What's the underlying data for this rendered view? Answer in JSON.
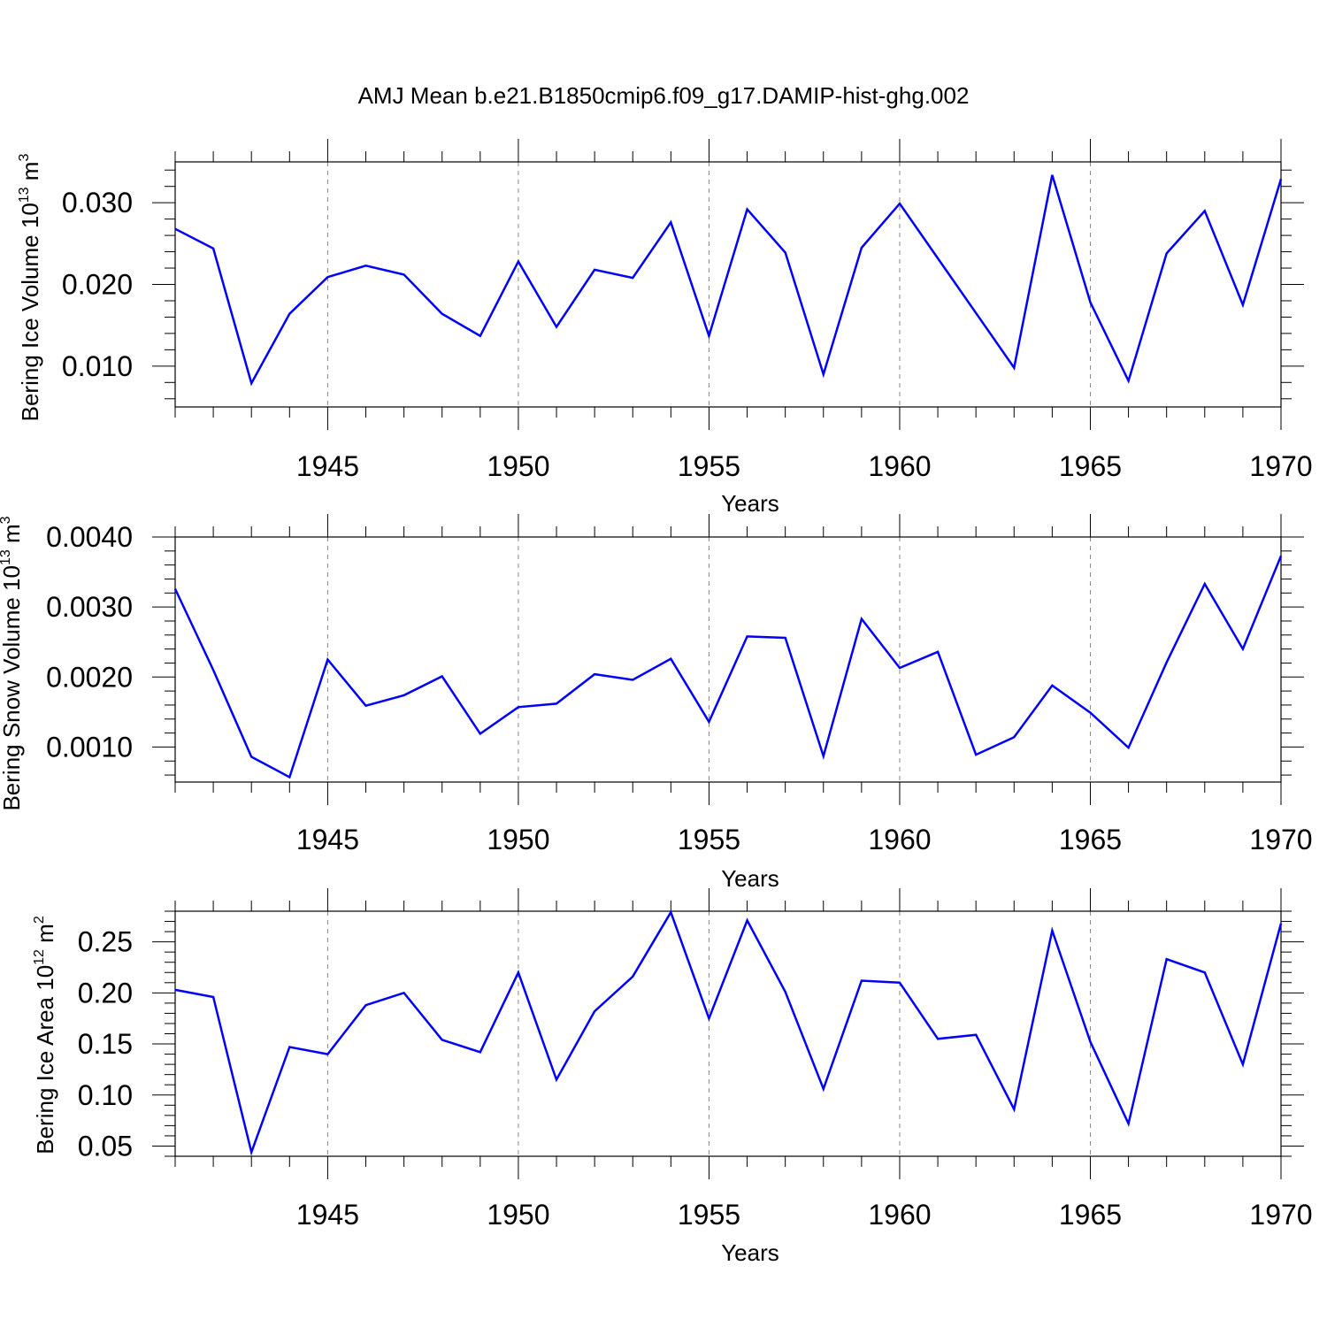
{
  "figure": {
    "title": "AMJ Mean b.e21.B1850cmip6.f09_g17.DAMIP-hist-ghg.002"
  },
  "style": {
    "line_color": "#0000ff",
    "axis_color": "#000000",
    "grid_color": "#888888"
  },
  "chart_data": [
    {
      "type": "line",
      "name": "ice-volume",
      "ylabel_main": "Bering Ice Volume 10",
      "ylabel_exp": "13",
      "ylabel_unit": " m",
      "ylabel_unit_exp": "3",
      "xlabel": "Years",
      "xlim": [
        1941,
        1970
      ],
      "ylim": [
        0.005,
        0.035
      ],
      "yticks": [
        0.01,
        0.02,
        0.03
      ],
      "ytick_labels": [
        "0.010",
        "0.020",
        "0.030"
      ],
      "y_minor_step": 0.002,
      "xticks": [
        1945,
        1950,
        1955,
        1960,
        1965,
        1970
      ],
      "xtick_labels": [
        "1945",
        "1950",
        "1955",
        "1960",
        "1965",
        "1970"
      ],
      "grid_x": [
        1945,
        1950,
        1955,
        1960,
        1965
      ],
      "x": [
        1941,
        1942,
        1943,
        1944,
        1945,
        1946,
        1947,
        1948,
        1949,
        1950,
        1951,
        1952,
        1953,
        1954,
        1955,
        1956,
        1957,
        1958,
        1959,
        1960,
        1961,
        1962,
        1963,
        1964,
        1965,
        1966,
        1967,
        1968,
        1969,
        1970
      ],
      "values": [
        0.0268,
        0.0244,
        0.0079,
        0.0164,
        0.0209,
        0.0223,
        0.0212,
        0.0164,
        0.0137,
        0.0228,
        0.0148,
        0.0218,
        0.0208,
        0.0276,
        0.0137,
        0.0292,
        0.0239,
        0.009,
        0.0245,
        0.0299,
        0.0232,
        0.0165,
        0.0098,
        0.0334,
        0.0178,
        0.0082,
        0.0238,
        0.029,
        0.0175,
        0.0329
      ]
    },
    {
      "type": "line",
      "name": "snow-volume",
      "ylabel_main": "Bering Snow Volume 10",
      "ylabel_exp": "13",
      "ylabel_unit": " m",
      "ylabel_unit_exp": "3",
      "xlabel": "Years",
      "xlim": [
        1941,
        1970
      ],
      "ylim": [
        0.0005,
        0.004
      ],
      "yticks": [
        0.001,
        0.002,
        0.003,
        0.004
      ],
      "ytick_labels": [
        "0.0010",
        "0.0020",
        "0.0030",
        "0.0040"
      ],
      "y_minor_step": 0.0002,
      "xticks": [
        1945,
        1950,
        1955,
        1960,
        1965,
        1970
      ],
      "xtick_labels": [
        "1945",
        "1950",
        "1955",
        "1960",
        "1965",
        "1970"
      ],
      "grid_x": [
        1945,
        1950,
        1955,
        1960,
        1965
      ],
      "x": [
        1941,
        1942,
        1943,
        1944,
        1945,
        1946,
        1947,
        1948,
        1949,
        1950,
        1951,
        1952,
        1953,
        1954,
        1955,
        1956,
        1957,
        1958,
        1959,
        1960,
        1961,
        1962,
        1963,
        1964,
        1965,
        1966,
        1967,
        1968,
        1969,
        1970
      ],
      "values": [
        0.00326,
        0.0021,
        0.00086,
        0.00057,
        0.00225,
        0.00159,
        0.00174,
        0.00201,
        0.00119,
        0.00157,
        0.00162,
        0.00204,
        0.00196,
        0.00226,
        0.00136,
        0.00258,
        0.00256,
        0.00087,
        0.00283,
        0.00213,
        0.00236,
        0.00089,
        0.00114,
        0.00188,
        0.00149,
        0.00099,
        0.00221,
        0.00333,
        0.0024,
        0.00373
      ]
    },
    {
      "type": "line",
      "name": "ice-area",
      "ylabel_main": "Bering Ice Area 10",
      "ylabel_exp": "12",
      "ylabel_unit": " m",
      "ylabel_unit_exp": "2",
      "xlabel": "Years",
      "xlim": [
        1941,
        1970
      ],
      "ylim": [
        0.04,
        0.28
      ],
      "yticks": [
        0.05,
        0.1,
        0.15,
        0.2,
        0.25
      ],
      "ytick_labels": [
        "0.05",
        "0.10",
        "0.15",
        "0.20",
        "0.25"
      ],
      "y_minor_step": 0.01,
      "xticks": [
        1945,
        1950,
        1955,
        1960,
        1965,
        1970
      ],
      "xtick_labels": [
        "1945",
        "1950",
        "1955",
        "1960",
        "1965",
        "1970"
      ],
      "grid_x": [
        1945,
        1950,
        1955,
        1960,
        1965
      ],
      "x": [
        1941,
        1942,
        1943,
        1944,
        1945,
        1946,
        1947,
        1948,
        1949,
        1950,
        1951,
        1952,
        1953,
        1954,
        1955,
        1956,
        1957,
        1958,
        1959,
        1960,
        1961,
        1962,
        1963,
        1964,
        1965,
        1966,
        1967,
        1968,
        1969,
        1970
      ],
      "values": [
        0.203,
        0.196,
        0.044,
        0.147,
        0.14,
        0.188,
        0.2,
        0.154,
        0.142,
        0.22,
        0.115,
        0.182,
        0.216,
        0.279,
        0.175,
        0.271,
        0.201,
        0.106,
        0.212,
        0.21,
        0.155,
        0.159,
        0.086,
        0.261,
        0.152,
        0.072,
        0.233,
        0.22,
        0.13,
        0.268
      ]
    }
  ]
}
